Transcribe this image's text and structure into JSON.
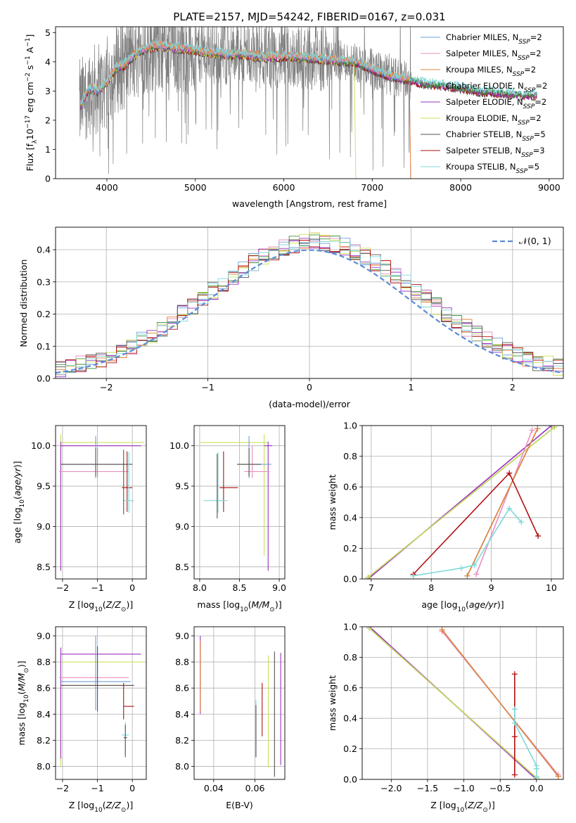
{
  "title": "PLATE=2157, MJD=54242, FIBERID=0167, z=0.031",
  "colors": {
    "chabrier_miles": "#6f9fd8",
    "salpeter_miles": "#e98fc0",
    "kroupa_miles": "#e3843a",
    "chabrier_elodie": "#3c8f3c",
    "salpeter_elodie": "#9b30c0",
    "kroupa_elodie": "#c9e05a",
    "chabrier_stelib": "#555555",
    "salpeter_stelib": "#b01010",
    "kroupa_stelib": "#7fd8d8",
    "data_gray": "#808080",
    "normal_curve": "#5b8ad8",
    "grid": "#b0b0b0"
  },
  "legend_top": [
    {
      "key": "chabrier_miles",
      "text": "Chabrier MILES, N",
      "sub": "SSP",
      "eq": "=2"
    },
    {
      "key": "salpeter_miles",
      "text": "Salpeter MILES, N",
      "sub": "SSP",
      "eq": "=2"
    },
    {
      "key": "kroupa_miles",
      "text": "Kroupa MILES, N",
      "sub": "SSP",
      "eq": "=2"
    },
    {
      "key": "chabrier_elodie",
      "text": "Chabrier ELODIE, N",
      "sub": "SSP",
      "eq": "=2"
    },
    {
      "key": "salpeter_elodie",
      "text": "Salpeter ELODIE, N",
      "sub": "SSP",
      "eq": "=2"
    },
    {
      "key": "kroupa_elodie",
      "text": "Kroupa ELODIE, N",
      "sub": "SSP",
      "eq": "=2"
    },
    {
      "key": "chabrier_stelib",
      "text": "Chabrier STELIB, N",
      "sub": "SSP",
      "eq": "=5"
    },
    {
      "key": "salpeter_stelib",
      "text": "Salpeter STELIB, N",
      "sub": "SSP",
      "eq": "=3"
    },
    {
      "key": "kroupa_stelib",
      "text": "Kroupa STELIB, N",
      "sub": "SSP",
      "eq": "=5"
    }
  ],
  "legend_hist": "𝒩(0, 1)",
  "chart_data": [
    {
      "id": "spectrum",
      "type": "line",
      "xlabel": "wavelength [Angstrom, rest frame]",
      "ylabel": "Flux [f_λ 10^-17 erg cm^-2 s^-1 A^-1]",
      "xlim": [
        3420,
        9160
      ],
      "ylim": [
        0,
        5.2
      ],
      "xticks": [
        4000,
        5000,
        6000,
        7000,
        8000,
        9000
      ],
      "yticks": [
        0,
        1,
        2,
        3,
        4,
        5
      ],
      "continuum": {
        "x": [
          3700,
          3800,
          3900,
          4000,
          4100,
          4200,
          4300,
          4400,
          4500,
          4600,
          4700,
          4800,
          4900,
          5000,
          5200,
          5400,
          5600,
          5800,
          6000,
          6200,
          6400,
          6600,
          6800,
          7000,
          7200,
          7400,
          7600,
          7800,
          8000,
          8200,
          8400,
          8600,
          8800
        ],
        "y": [
          2.5,
          3.1,
          3.0,
          3.3,
          3.8,
          3.9,
          4.2,
          4.4,
          4.5,
          4.55,
          4.5,
          4.45,
          4.45,
          4.4,
          4.3,
          4.25,
          4.25,
          4.15,
          4.2,
          4.15,
          4.1,
          4.05,
          4.0,
          3.75,
          3.5,
          3.4,
          3.25,
          3.2,
          3.1,
          3.0,
          2.95,
          2.9,
          2.85
        ]
      },
      "cutoffs": {
        "kroupa_elodie": 6800,
        "salpeter_miles": 7420,
        "kroupa_miles": 7420,
        "chabrier_miles": 7420
      },
      "data_range": [
        3690,
        7440
      ]
    },
    {
      "id": "hist",
      "type": "step",
      "xlabel": "(data-model)/error",
      "ylabel": "Normed distribution",
      "xlim": [
        -2.5,
        2.5
      ],
      "ylim": [
        0,
        0.47
      ],
      "xticks": [
        -2,
        -1,
        0,
        1,
        2
      ],
      "yticks": [
        0.0,
        0.1,
        0.2,
        0.3,
        0.4
      ],
      "bin_width": 0.1,
      "normal": {
        "mu": 0,
        "sigma": 1
      }
    },
    {
      "id": "age_vs_Z",
      "type": "errorbar",
      "xlabel": "Z [log10(Z/Z⊙)]",
      "ylabel": "age  [log10(age/yr)]",
      "xlim": [
        -2.2,
        0.4
      ],
      "ylim": [
        8.35,
        10.25
      ],
      "xticks": [
        -2,
        -1,
        0
      ],
      "yticks": [
        8.5,
        9.0,
        9.5,
        10.0
      ],
      "points": [
        {
          "c": "kroupa_elodie",
          "x": -2.05,
          "xerr": [
            0.0,
            2.4
          ],
          "y": 10.04,
          "yerr": [
            1.4,
            0.1
          ]
        },
        {
          "c": "salpeter_elodie",
          "x": -2.05,
          "xerr": [
            0.0,
            2.3
          ],
          "y": 10.0,
          "yerr": [
            1.55,
            0.05
          ]
        },
        {
          "c": "salpeter_miles",
          "x": -1.0,
          "xerr": [
            1.1,
            0.9
          ],
          "y": 9.68,
          "yerr": [
            0.08,
            0.32
          ]
        },
        {
          "c": "chabrier_miles",
          "x": -1.05,
          "xerr": [
            1.0,
            1.0
          ],
          "y": 9.77,
          "yerr": [
            0.17,
            0.35
          ]
        },
        {
          "c": "kroupa_miles",
          "x": -1.0,
          "xerr": [
            1.05,
            1.0
          ],
          "y": 9.77,
          "yerr": [
            0.15,
            0.2
          ]
        },
        {
          "c": "chabrier_stelib",
          "x": -1.05,
          "xerr": [
            1.0,
            1.05
          ],
          "y": 9.77,
          "yerr": [
            0.15,
            0.2
          ]
        },
        {
          "c": "salpeter_stelib",
          "x": -0.15,
          "xerr": [
            0.15,
            0.15
          ],
          "y": 9.48,
          "yerr": [
            0.3,
            0.45
          ]
        },
        {
          "c": "kroupa_stelib",
          "x": -0.1,
          "xerr": [
            0.15,
            0.15
          ],
          "y": 9.32,
          "yerr": [
            0.15,
            0.6
          ]
        },
        {
          "c": "chabrier_stelib",
          "x": -0.25,
          "xerr": [
            0.0,
            0.0
          ],
          "y": 9.55,
          "yerr": [
            0.4,
            0.4
          ]
        }
      ]
    },
    {
      "id": "age_vs_mass",
      "type": "errorbar",
      "xlabel": "mass [log10(M/M⊙)]",
      "ylabel": "",
      "xlim": [
        7.93,
        9.07
      ],
      "ylim": [
        8.35,
        10.25
      ],
      "xticks": [
        8.0,
        8.5,
        9.0
      ],
      "yticks": [
        8.5,
        9.0,
        9.5,
        10.0
      ],
      "points": [
        {
          "c": "kroupa_elodie",
          "x": 8.81,
          "xerr": [
            0.8,
            0.05
          ],
          "y": 10.04,
          "yerr": [
            1.4,
            0.1
          ]
        },
        {
          "c": "salpeter_elodie",
          "x": 8.86,
          "xerr": [
            0.05,
            0.05
          ],
          "y": 10.0,
          "yerr": [
            1.55,
            0.05
          ]
        },
        {
          "c": "salpeter_miles",
          "x": 8.66,
          "xerr": [
            0.1,
            0.22
          ],
          "y": 9.68,
          "yerr": [
            0.08,
            0.32
          ]
        },
        {
          "c": "chabrier_miles",
          "x": 8.62,
          "xerr": [
            0.12,
            0.28
          ],
          "y": 9.77,
          "yerr": [
            0.17,
            0.35
          ]
        },
        {
          "c": "kroupa_miles",
          "x": 8.62,
          "xerr": [
            0.15,
            0.15
          ],
          "y": 9.77,
          "yerr": [
            0.15,
            0.2
          ]
        },
        {
          "c": "chabrier_stelib",
          "x": 8.62,
          "xerr": [
            0.15,
            0.15
          ],
          "y": 9.77,
          "yerr": [
            0.15,
            0.2
          ]
        },
        {
          "c": "salpeter_stelib",
          "x": 8.3,
          "xerr": [
            0.05,
            0.18
          ],
          "y": 9.48,
          "yerr": [
            0.3,
            0.45
          ]
        },
        {
          "c": "kroupa_stelib",
          "x": 8.23,
          "xerr": [
            0.18,
            0.12
          ],
          "y": 9.32,
          "yerr": [
            0.15,
            0.6
          ]
        },
        {
          "c": "chabrier_stelib",
          "x": 8.22,
          "xerr": [
            0.0,
            0.0
          ],
          "y": 9.5,
          "yerr": [
            0.4,
            0.4
          ]
        }
      ]
    },
    {
      "id": "mw_vs_age",
      "type": "line",
      "xlabel": "age  [log10(age/yr)]",
      "ylabel": "mass weight",
      "xlim": [
        6.85,
        10.2
      ],
      "ylim": [
        0,
        1
      ],
      "xticks": [
        7,
        8,
        9,
        10
      ],
      "yticks": [
        0.0,
        0.2,
        0.4,
        0.6,
        0.8,
        1.0
      ],
      "series": [
        {
          "c": "chabrier_stelib",
          "x": [
            6.95,
            10.05
          ],
          "y": [
            0.01,
            0.99
          ]
        },
        {
          "c": "salpeter_elodie",
          "x": [
            6.95,
            10.0
          ],
          "y": [
            0.0,
            1.0
          ]
        },
        {
          "c": "kroupa_elodie",
          "x": [
            6.95,
            10.05
          ],
          "y": [
            0.01,
            0.99
          ]
        },
        {
          "c": "salpeter_miles",
          "x": [
            8.75,
            9.68
          ],
          "y": [
            0.03,
            0.97
          ]
        },
        {
          "c": "chabrier_miles",
          "x": [
            8.6,
            9.77
          ],
          "y": [
            0.02,
            0.98
          ]
        },
        {
          "c": "kroupa_miles",
          "x": [
            8.6,
            9.77
          ],
          "y": [
            0.02,
            0.98
          ]
        },
        {
          "c": "salpeter_stelib",
          "x": [
            7.7,
            9.3,
            9.78
          ],
          "y": [
            0.03,
            0.69,
            0.28
          ]
        },
        {
          "c": "kroupa_stelib",
          "x": [
            7.7,
            8.5,
            8.72,
            9.3,
            9.5
          ],
          "y": [
            0.02,
            0.07,
            0.09,
            0.46,
            0.37
          ]
        }
      ]
    },
    {
      "id": "mass_vs_Z",
      "type": "errorbar",
      "xlabel": "Z [log10(Z/Z⊙)]",
      "ylabel": "mass [log10(M/M⊙)]",
      "xlim": [
        -2.2,
        0.4
      ],
      "ylim": [
        7.9,
        9.07
      ],
      "xticks": [
        -2,
        -1,
        0
      ],
      "yticks": [
        8.0,
        8.2,
        8.4,
        8.6,
        8.8,
        9.0
      ],
      "points": [
        {
          "c": "kroupa_elodie",
          "x": -2.05,
          "xerr": [
            0.0,
            2.4
          ],
          "y": 8.8,
          "yerr": [
            0.8,
            0.05
          ]
        },
        {
          "c": "salpeter_elodie",
          "x": -2.05,
          "xerr": [
            0.0,
            2.3
          ],
          "y": 8.86,
          "yerr": [
            0.8,
            0.05
          ]
        },
        {
          "c": "salpeter_miles",
          "x": -1.0,
          "xerr": [
            1.1,
            0.9
          ],
          "y": 8.68,
          "yerr": [
            0.08,
            0.22
          ]
        },
        {
          "c": "chabrier_miles",
          "x": -1.05,
          "xerr": [
            1.0,
            1.0
          ],
          "y": 8.65,
          "yerr": [
            0.22,
            0.35
          ]
        },
        {
          "c": "kroupa_miles",
          "x": -1.0,
          "xerr": [
            1.05,
            1.0
          ],
          "y": 8.62,
          "yerr": [
            0.2,
            0.3
          ]
        },
        {
          "c": "chabrier_stelib",
          "x": -1.0,
          "xerr": [
            1.05,
            1.05
          ],
          "y": 8.62,
          "yerr": [
            0.2,
            0.3
          ]
        },
        {
          "c": "salpeter_stelib",
          "x": -0.25,
          "xerr": [
            0.0,
            0.3
          ],
          "y": 8.46,
          "yerr": [
            0.1,
            0.18
          ]
        },
        {
          "c": "kroupa_stelib",
          "x": -0.2,
          "xerr": [
            0.1,
            0.1
          ],
          "y": 8.24,
          "yerr": [
            0.15,
            0.1
          ]
        },
        {
          "c": "chabrier_stelib",
          "x": -0.2,
          "xerr": [
            0.05,
            0.05
          ],
          "y": 8.22,
          "yerr": [
            0.15,
            0.1
          ]
        }
      ]
    },
    {
      "id": "mass_vs_ebv",
      "type": "errorbar",
      "xlabel": "E(B-V)",
      "ylabel": "",
      "xlim": [
        0.0305,
        0.0745
      ],
      "ylim": [
        7.9,
        9.07
      ],
      "xticks": [
        0.04,
        0.06
      ],
      "yticks": [
        8.0,
        8.2,
        8.4,
        8.6,
        8.8,
        9.0
      ],
      "points": [
        {
          "c": "salpeter_elodie",
          "x": 0.0335,
          "xerr": [
            0,
            0
          ],
          "y": 8.7,
          "yerr": [
            0.3,
            0.3
          ]
        },
        {
          "c": "kroupa_miles",
          "x": 0.0335,
          "xerr": [
            0,
            0
          ],
          "y": 8.68,
          "yerr": [
            0.26,
            0.28
          ]
        },
        {
          "c": "kroupa_stelib",
          "x": 0.0605,
          "xerr": [
            0,
            0
          ],
          "y": 8.29,
          "yerr": [
            0.22,
            0.22
          ]
        },
        {
          "c": "chabrier_stelib",
          "x": 0.0605,
          "xerr": [
            0,
            0
          ],
          "y": 8.27,
          "yerr": [
            0.2,
            0.2
          ]
        },
        {
          "c": "salpeter_stelib",
          "x": 0.0635,
          "xerr": [
            0,
            0
          ],
          "y": 8.43,
          "yerr": [
            0.2,
            0.21
          ]
        },
        {
          "c": "kroupa_elodie",
          "x": 0.0665,
          "xerr": [
            0,
            0
          ],
          "y": 8.42,
          "yerr": [
            0.43,
            0.43
          ]
        },
        {
          "c": "chabrier_stelib",
          "x": 0.0695,
          "xerr": [
            0,
            0
          ],
          "y": 8.4,
          "yerr": [
            0.48,
            0.48
          ]
        },
        {
          "c": "salpeter_elodie",
          "x": 0.0725,
          "xerr": [
            0,
            0
          ],
          "y": 8.44,
          "yerr": [
            0.43,
            0.43
          ]
        }
      ]
    },
    {
      "id": "mw_vs_Z",
      "type": "line",
      "xlabel": "Z [log10(Z/Z⊙)]",
      "ylabel": "mass weight",
      "xlim": [
        -2.4,
        0.37
      ],
      "ylim": [
        0,
        1
      ],
      "xticks": [
        -2.0,
        -1.5,
        -1.0,
        -0.5,
        0.0
      ],
      "yticks": [
        0.0,
        0.2,
        0.4,
        0.6,
        0.8,
        1.0
      ],
      "series": [
        {
          "c": "chabrier_stelib",
          "x": [
            -2.3,
            0.0
          ],
          "y": [
            0.99,
            0.01
          ]
        },
        {
          "c": "salpeter_elodie",
          "x": [
            -2.3,
            0.0
          ],
          "y": [
            1.0,
            0.0
          ]
        },
        {
          "c": "kroupa_elodie",
          "x": [
            -2.3,
            0.0
          ],
          "y": [
            0.99,
            0.01
          ]
        },
        {
          "c": "salpeter_miles",
          "x": [
            -1.3,
            0.3
          ],
          "y": [
            0.97,
            0.03
          ]
        },
        {
          "c": "chabrier_miles",
          "x": [
            -1.3,
            0.3
          ],
          "y": [
            0.98,
            0.02
          ]
        },
        {
          "c": "kroupa_miles",
          "x": [
            -1.3,
            0.3
          ],
          "y": [
            0.98,
            0.02
          ]
        },
        {
          "c": "salpeter_stelib",
          "x": [
            -0.3,
            -0.3,
            -0.3
          ],
          "y": [
            0.69,
            0.28,
            0.03
          ]
        },
        {
          "c": "kroupa_stelib",
          "x": [
            -0.3,
            -0.3,
            0.0,
            0.0,
            0.0
          ],
          "y": [
            0.46,
            0.37,
            0.09,
            0.07,
            0.02
          ]
        }
      ]
    }
  ]
}
